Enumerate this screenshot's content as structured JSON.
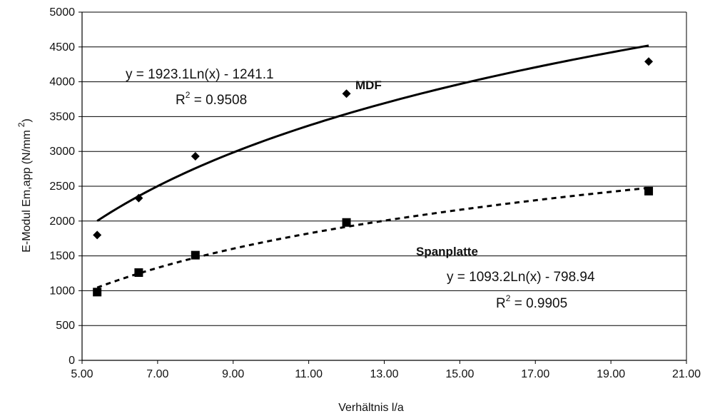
{
  "chart_data": {
    "type": "scatter",
    "xlabel": "Verhältnis l/a",
    "ylabel": {
      "main": "E-Modul Em,app (N/mm",
      "superscript": "2",
      "close": ")"
    },
    "xlim": [
      5.0,
      21.0
    ],
    "ylim": [
      0,
      5000
    ],
    "x_ticks": [
      "5.00",
      "7.00",
      "9.00",
      "11.00",
      "13.00",
      "15.00",
      "17.00",
      "19.00",
      "21.00"
    ],
    "y_ticks": [
      "0",
      "500",
      "1000",
      "1500",
      "2000",
      "2500",
      "3000",
      "3500",
      "4000",
      "4500",
      "5000"
    ],
    "grid": true,
    "series": [
      {
        "name": "MDF",
        "marker": "diamond",
        "points": [
          {
            "x": 5.4,
            "y": 1800
          },
          {
            "x": 6.5,
            "y": 2330
          },
          {
            "x": 8.0,
            "y": 2930
          },
          {
            "x": 12.0,
            "y": 3830
          },
          {
            "x": 20.0,
            "y": 4290
          }
        ],
        "trendline": {
          "style": "solid",
          "a": 1923.1,
          "b": -1241.1,
          "equation": "y = 1923.1Ln(x) - 1241.1",
          "r2_prefix": "R",
          "r2_sup": "2",
          "r2_value": " = 0.9508"
        }
      },
      {
        "name": "Spanplatte",
        "marker": "square",
        "points": [
          {
            "x": 5.4,
            "y": 980
          },
          {
            "x": 6.5,
            "y": 1260
          },
          {
            "x": 8.0,
            "y": 1510
          },
          {
            "x": 12.0,
            "y": 1980
          },
          {
            "x": 20.0,
            "y": 2430
          }
        ],
        "trendline": {
          "style": "dashed",
          "a": 1093.2,
          "b": -798.94,
          "equation": "y = 1093.2Ln(x) - 798.94",
          "r2_prefix": "R",
          "r2_sup": "2",
          "r2_value": " = 0.9905"
        }
      }
    ]
  }
}
